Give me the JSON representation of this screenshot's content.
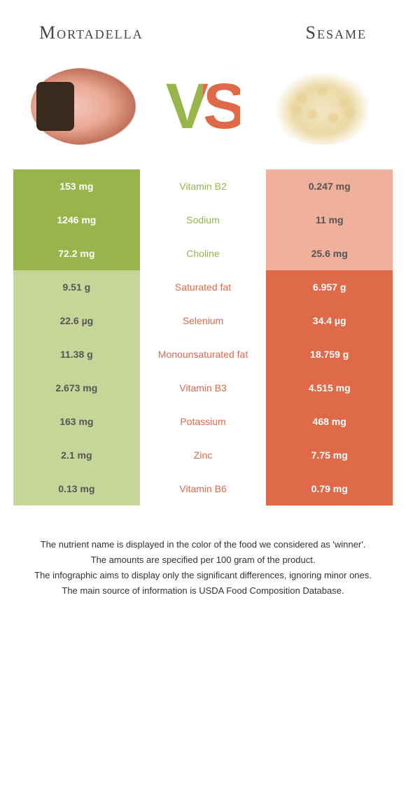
{
  "header": {
    "left": "Mortadella",
    "right": "Sesame",
    "vs": "VS"
  },
  "colors": {
    "green": "#97b54b",
    "greenLight": "#c7d698",
    "orange": "#de6a4a",
    "orangeLight": "#efb19b"
  },
  "rows": [
    {
      "label": "Vitamin B2",
      "left": "153 mg",
      "right": "0.247 mg",
      "winner": "left"
    },
    {
      "label": "Sodium",
      "left": "1246 mg",
      "right": "11 mg",
      "winner": "left"
    },
    {
      "label": "Choline",
      "left": "72.2 mg",
      "right": "25.6 mg",
      "winner": "left"
    },
    {
      "label": "Saturated fat",
      "left": "9.51 g",
      "right": "6.957 g",
      "winner": "right"
    },
    {
      "label": "Selenium",
      "left": "22.6 µg",
      "right": "34.4 µg",
      "winner": "right"
    },
    {
      "label": "Monounsaturated fat",
      "left": "11.38 g",
      "right": "18.759 g",
      "winner": "right"
    },
    {
      "label": "Vitamin B3",
      "left": "2.673 mg",
      "right": "4.515 mg",
      "winner": "right"
    },
    {
      "label": "Potassium",
      "left": "163 mg",
      "right": "468 mg",
      "winner": "right"
    },
    {
      "label": "Zinc",
      "left": "2.1 mg",
      "right": "7.75 mg",
      "winner": "right"
    },
    {
      "label": "Vitamin B6",
      "left": "0.13 mg",
      "right": "0.79 mg",
      "winner": "right"
    }
  ],
  "notes": [
    "The nutrient name is displayed in the color of the food we considered as 'winner'.",
    "The amounts are specified per 100 gram of the product.",
    "The infographic aims to display only the significant differences, ignoring minor ones.",
    "The main source of information is USDA Food Composition Database."
  ]
}
